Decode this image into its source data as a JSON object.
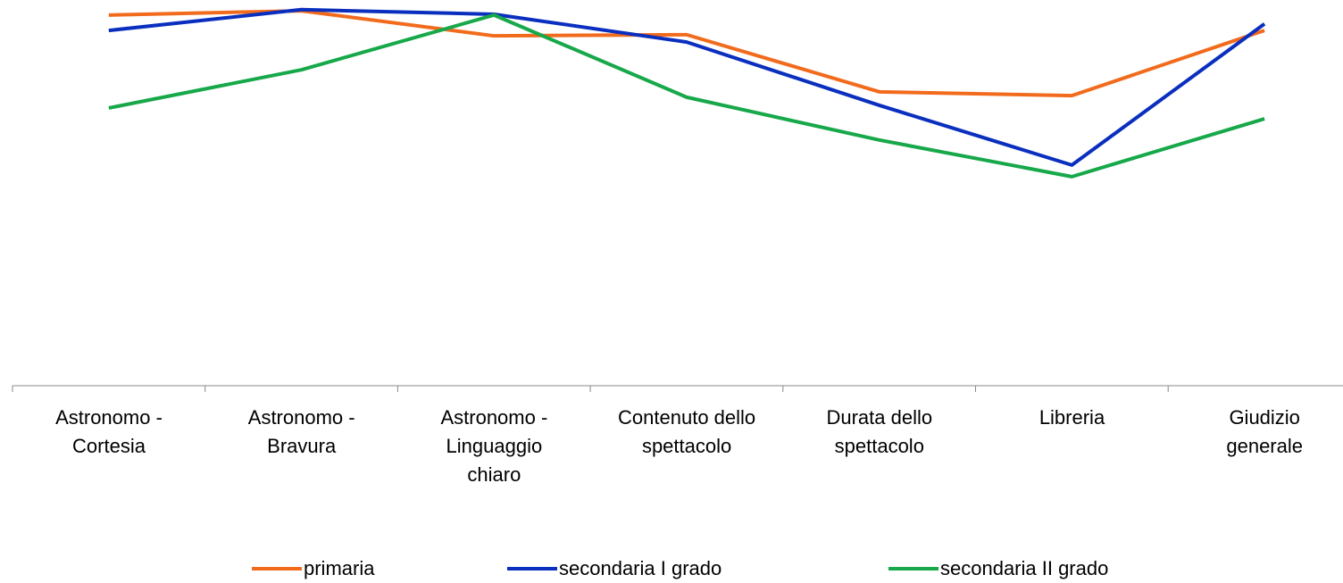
{
  "chart_data": {
    "type": "line",
    "categories": [
      "Astronomo -\nCortesia",
      "Astronomo -\nBravura",
      "Astronomo -\nLinguaggio\nchiaro",
      "Contenuto dello\nspettacolo",
      "Durata dello\nspettacolo",
      "Libreria",
      "Giudizio\ngenerale"
    ],
    "series": [
      {
        "name": "primaria",
        "color": "#f26b1d",
        "values": [
          96.1,
          97.2,
          90.7,
          91.0,
          76.2,
          75.2,
          92.1
        ]
      },
      {
        "name": "secondaria I grado",
        "color": "#0a2fbf",
        "values": [
          92.1,
          97.5,
          96.3,
          89.1,
          72.7,
          57.2,
          93.8
        ]
      },
      {
        "name": "secondaria II grado",
        "color": "#17a84a",
        "values": [
          72.0,
          81.9,
          96.1,
          74.8,
          63.7,
          54.2,
          69.2
        ]
      }
    ],
    "ylim": [
      0,
      100
    ],
    "legend": "bottom"
  }
}
